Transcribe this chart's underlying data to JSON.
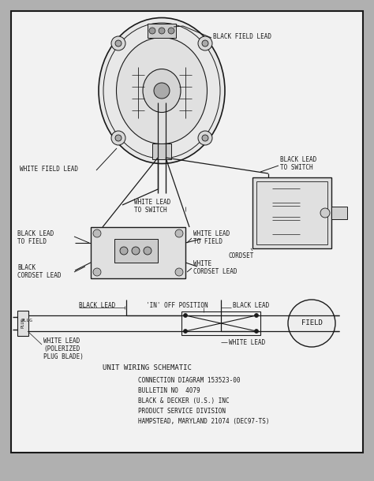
{
  "bg_outer": "#b0b0b0",
  "bg_inner": "#f0f0f0",
  "lc": "#1a1a1a",
  "tc": "#1a1a1a",
  "fs": 5.5,
  "fs_small": 5.0,
  "fs_title": 6.5,
  "title": "UNIT WIRING SCHEMATIC",
  "info_lines": [
    "CONNECTION DIAGRAM 153523-00",
    "BULLETIN NO  4079",
    "BLACK & DECKER (U.S.) INC",
    "PRODUCT SERVICE DIVISION",
    "HAMPSTEAD, MARYLAND 21074 (DEC97-TS)"
  ]
}
